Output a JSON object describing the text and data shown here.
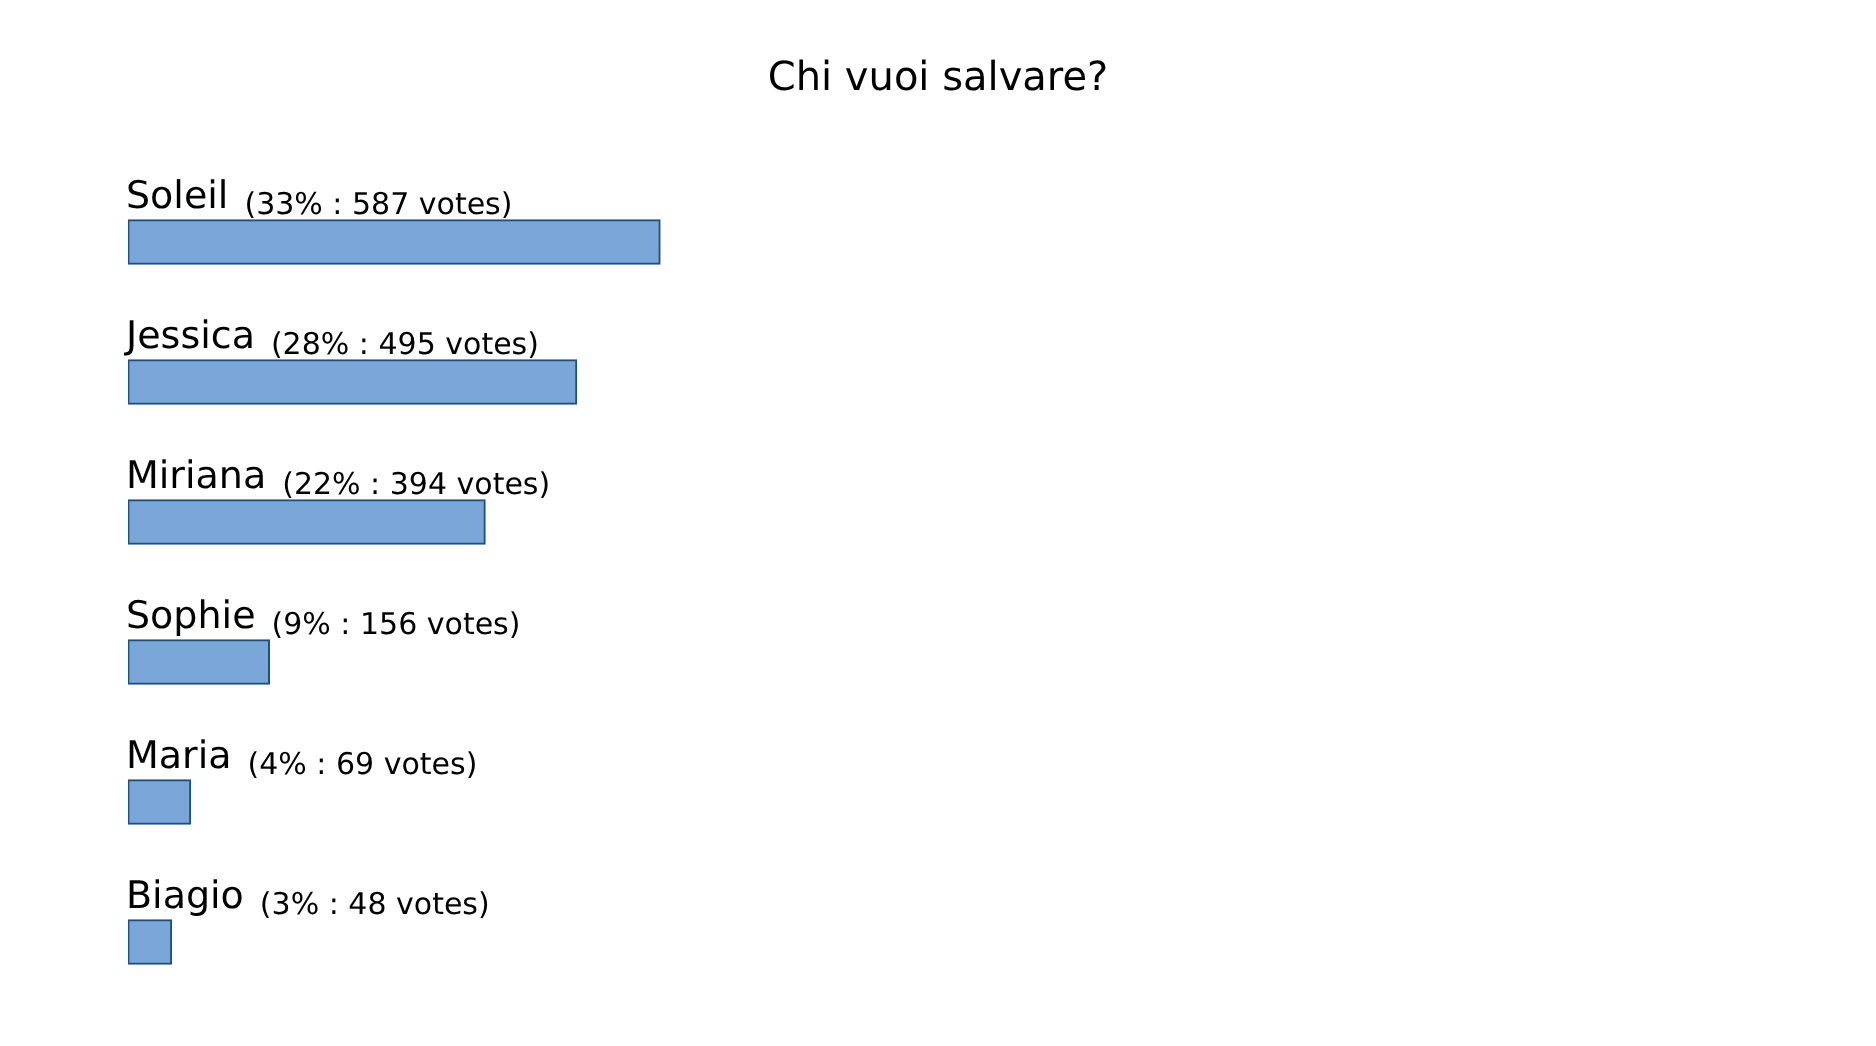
{
  "chart_data": {
    "type": "bar",
    "orientation": "horizontal",
    "title": "Chi vuoi salvare?",
    "categories": [
      "Soleil",
      "Jessica",
      "Miriana",
      "Sophie",
      "Maria",
      "Biagio"
    ],
    "values": [
      587,
      495,
      394,
      156,
      69,
      48
    ],
    "value_labels": [
      "(33% : 587 votes)",
      "(28% : 495 votes)",
      "(22% : 394 votes)",
      "(9% : 156 votes)",
      "(4% : 69 votes)",
      "(3% : 48 votes)"
    ],
    "color": "#7aa6d8"
  }
}
